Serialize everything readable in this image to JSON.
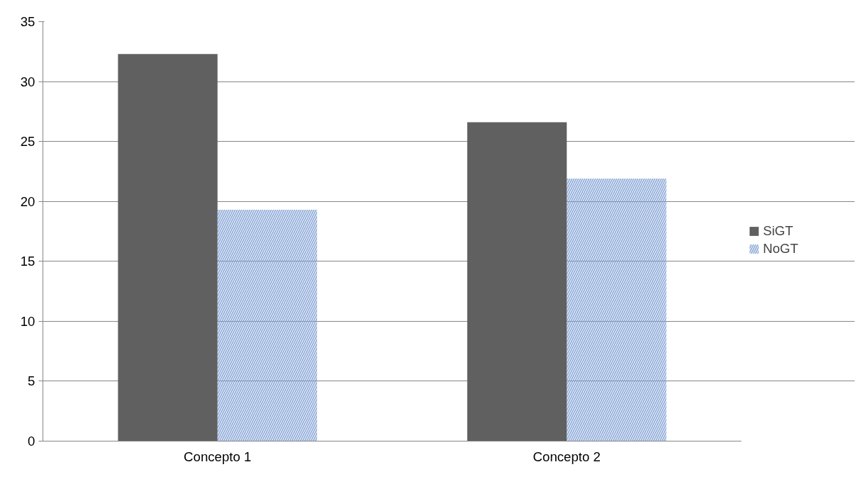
{
  "chart_data": {
    "type": "bar",
    "categories": [
      "Concepto 1",
      "Concepto 2"
    ],
    "series": [
      {
        "name": "SiGT",
        "color": "#606060",
        "values": [
          32.3,
          26.6
        ]
      },
      {
        "name": "NoGT",
        "color": "#7f9fd4",
        "values": [
          19.3,
          21.9
        ]
      }
    ],
    "ylim": [
      0,
      35
    ],
    "yticks": [
      0,
      5,
      10,
      15,
      20,
      25,
      30,
      35
    ],
    "grid": "y",
    "legend": "right"
  }
}
